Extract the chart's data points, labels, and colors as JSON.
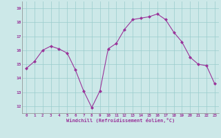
{
  "x": [
    0,
    1,
    2,
    3,
    4,
    5,
    6,
    7,
    8,
    9,
    10,
    11,
    12,
    13,
    14,
    15,
    16,
    17,
    18,
    19,
    20,
    21,
    22,
    23
  ],
  "y": [
    14.7,
    15.2,
    16.0,
    16.3,
    16.1,
    15.8,
    14.6,
    13.1,
    11.9,
    13.1,
    16.1,
    16.5,
    17.5,
    18.2,
    18.3,
    18.4,
    18.6,
    18.2,
    17.3,
    16.6,
    15.5,
    15.0,
    14.9,
    13.6
  ],
  "line_color": "#993399",
  "marker": "D",
  "marker_size": 2,
  "bg_color": "#cce8e8",
  "grid_color": "#99cccc",
  "xlabel": "Windchill (Refroidissement éolien,°C)",
  "xlabel_color": "#993399",
  "tick_color": "#993399",
  "ylim": [
    11.5,
    19.5
  ],
  "yticks": [
    12,
    13,
    14,
    15,
    16,
    17,
    18,
    19
  ],
  "xticks": [
    0,
    1,
    2,
    3,
    4,
    5,
    6,
    7,
    8,
    9,
    10,
    11,
    12,
    13,
    14,
    15,
    16,
    17,
    18,
    19,
    20,
    21,
    22,
    23
  ],
  "spine_color": "#888888"
}
